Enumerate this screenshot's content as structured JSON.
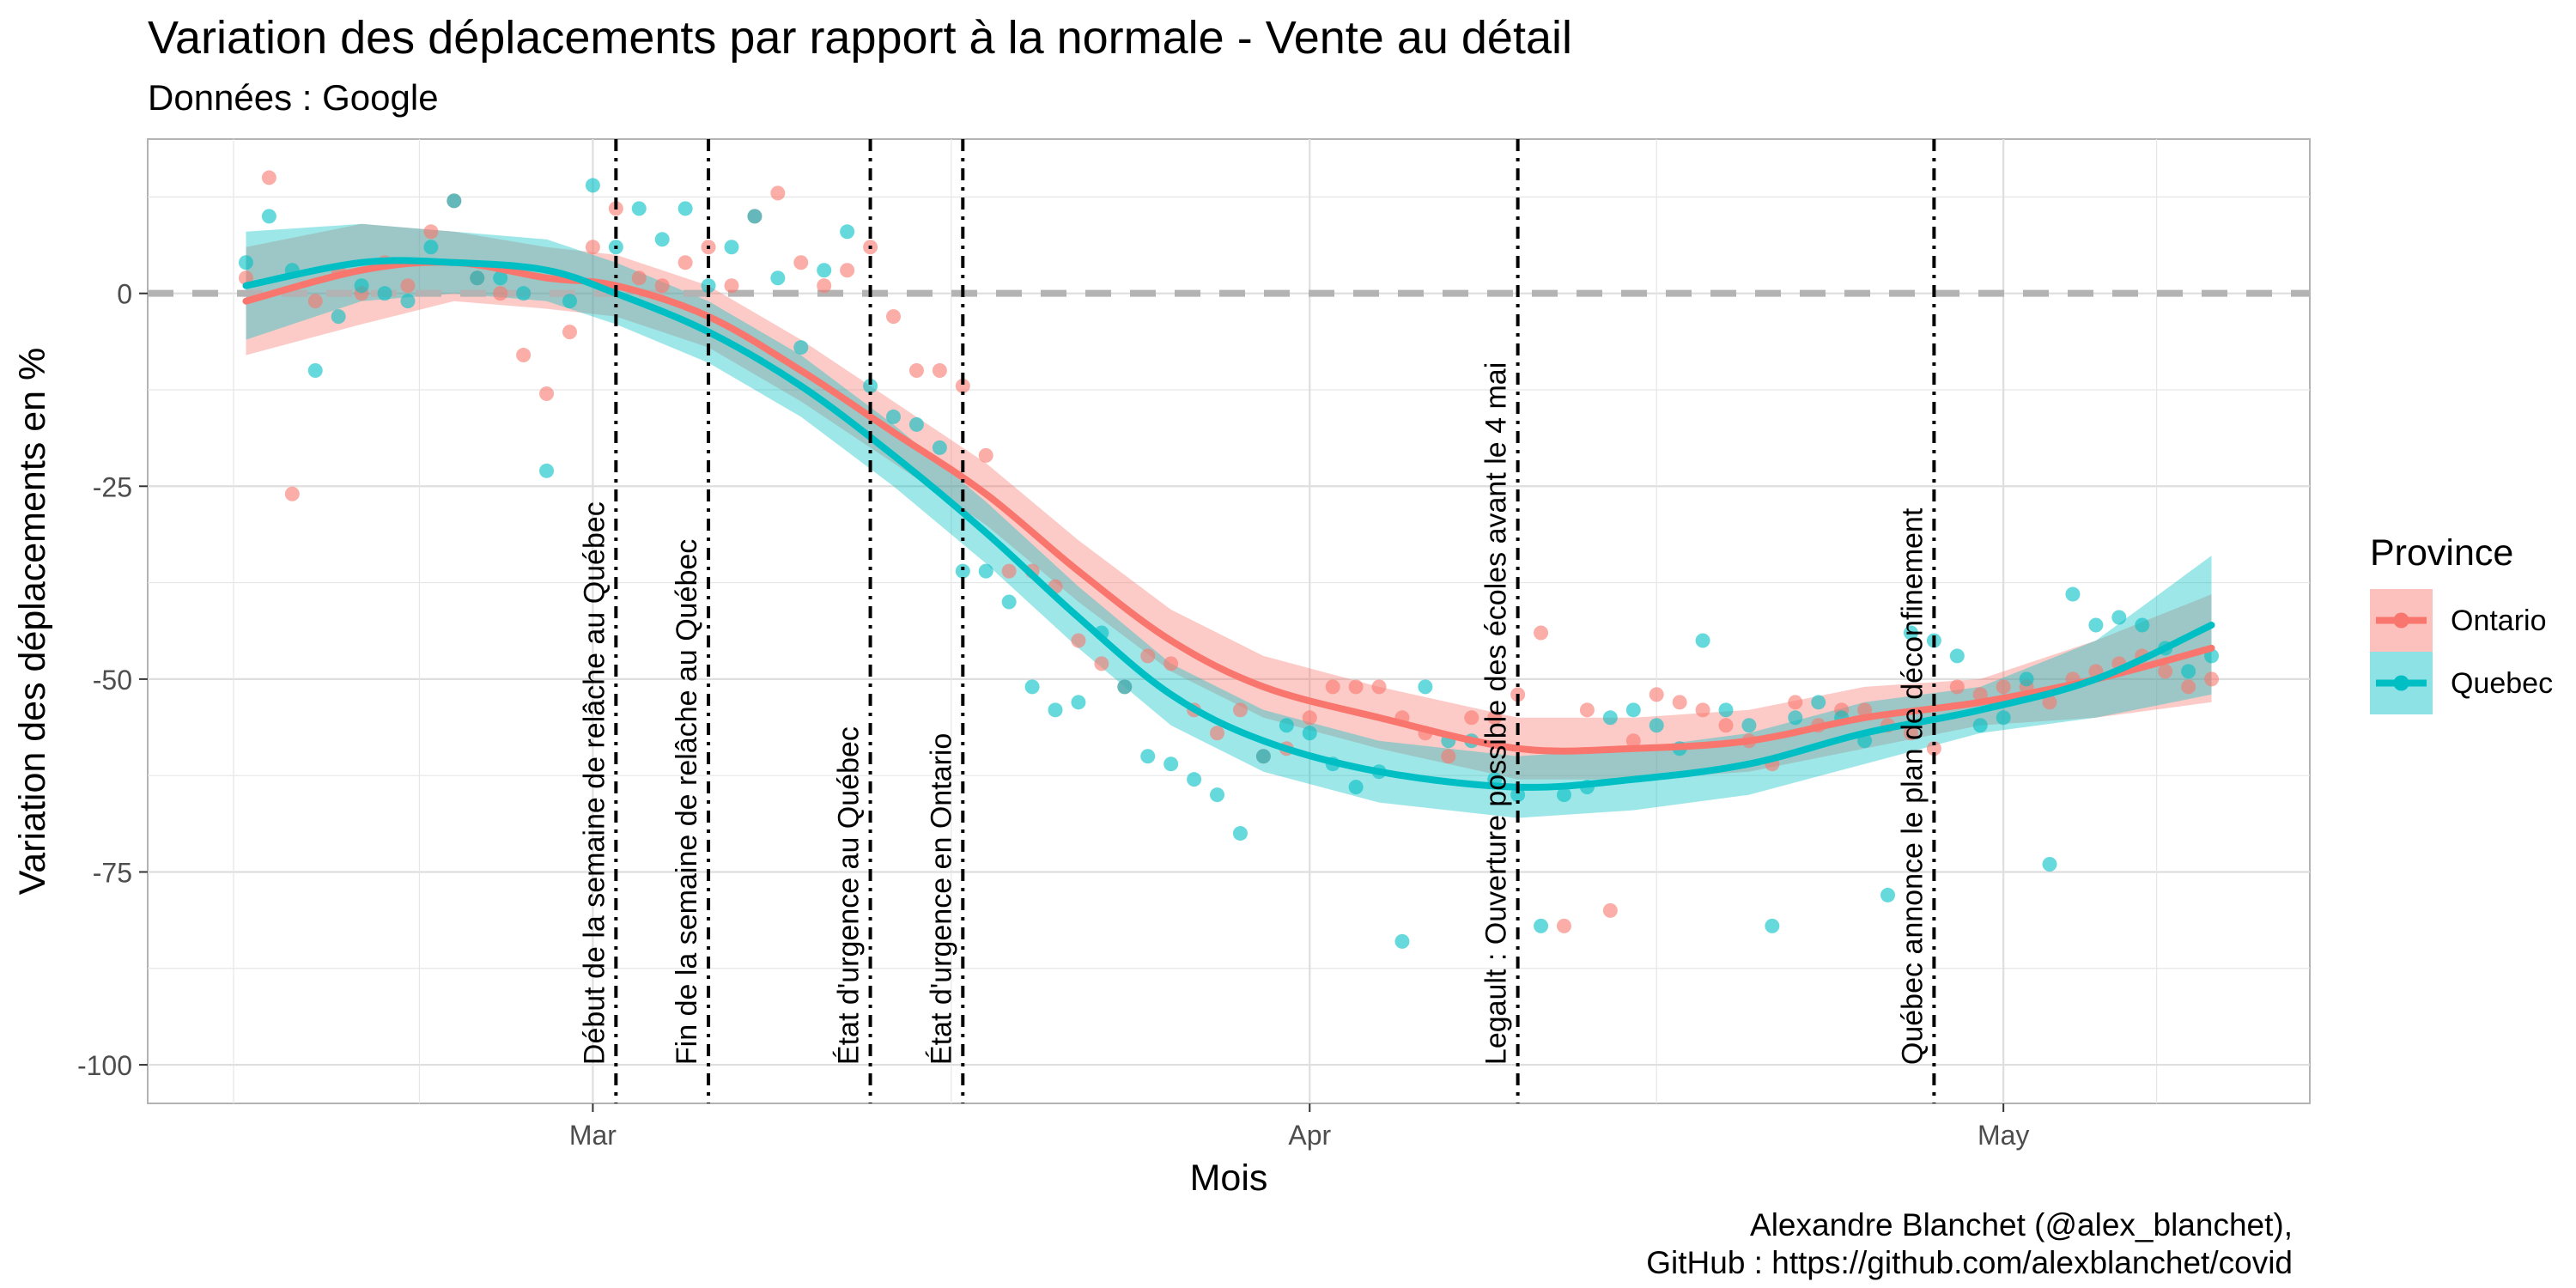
{
  "title": "Variation des déplacements par rapport à la normale - Vente au détail",
  "subtitle": "Données : Google",
  "caption": {
    "line1": "Alexandre Blanchet (@alex_blanchet),",
    "line2": "GitHub : https://github.com/alexblanchet/covid"
  },
  "colors": {
    "ontario": "#F8766D",
    "quebec": "#00BFC4",
    "grid": "#e6e6e6",
    "panel_border": "#b3b3b3",
    "zero_line": "#b3b3b3"
  },
  "chart_data": {
    "type": "scatter",
    "xlabel": "Mois",
    "ylabel": "Variation des déplacements en %",
    "x_domain": [
      "2020-02-15",
      "2020-05-10"
    ],
    "ylim": [
      -105,
      20
    ],
    "y_ticks": [
      0,
      -25,
      -50,
      -75,
      -100
    ],
    "x_ticks": [
      {
        "date": "2020-03-01",
        "label": "Mar"
      },
      {
        "date": "2020-04-01",
        "label": "Apr"
      },
      {
        "date": "2020-05-01",
        "label": "May"
      }
    ],
    "grid": true,
    "legend": {
      "title": "Province",
      "placement": "right"
    },
    "reference_line": {
      "y": 0,
      "style": "dashed"
    },
    "events": [
      {
        "date": "2020-03-02",
        "label": "Début de la semaine de relâche au Québec"
      },
      {
        "date": "2020-03-06",
        "label": "Fin de la semaine de relâche au Québec"
      },
      {
        "date": "2020-03-13",
        "label": "État d'urgence au Québec"
      },
      {
        "date": "2020-03-17",
        "label": "État d'urgence en Ontario"
      },
      {
        "date": "2020-04-10",
        "label": "Legault : Ouverture possible des écoles avant le 4 mai"
      },
      {
        "date": "2020-04-28",
        "label": "Québec annonce le plan de déconfinement"
      }
    ],
    "series": [
      {
        "name": "Ontario",
        "points": [
          [
            "2020-02-15",
            2
          ],
          [
            "2020-02-16",
            15
          ],
          [
            "2020-02-17",
            -26
          ],
          [
            "2020-02-18",
            -1
          ],
          [
            "2020-02-19",
            3
          ],
          [
            "2020-02-20",
            0
          ],
          [
            "2020-02-21",
            4
          ],
          [
            "2020-02-22",
            1
          ],
          [
            "2020-02-23",
            8
          ],
          [
            "2020-02-24",
            12
          ],
          [
            "2020-02-25",
            2
          ],
          [
            "2020-02-26",
            0
          ],
          [
            "2020-02-27",
            -8
          ],
          [
            "2020-02-28",
            -13
          ],
          [
            "2020-02-29",
            -5
          ],
          [
            "2020-03-01",
            6
          ],
          [
            "2020-03-02",
            11
          ],
          [
            "2020-03-03",
            2
          ],
          [
            "2020-03-04",
            1
          ],
          [
            "2020-03-05",
            4
          ],
          [
            "2020-03-06",
            6
          ],
          [
            "2020-03-07",
            1
          ],
          [
            "2020-03-08",
            10
          ],
          [
            "2020-03-09",
            13
          ],
          [
            "2020-03-10",
            4
          ],
          [
            "2020-03-11",
            1
          ],
          [
            "2020-03-12",
            3
          ],
          [
            "2020-03-13",
            6
          ],
          [
            "2020-03-14",
            -3
          ],
          [
            "2020-03-15",
            -10
          ],
          [
            "2020-03-16",
            -10
          ],
          [
            "2020-03-17",
            -12
          ],
          [
            "2020-03-18",
            -21
          ],
          [
            "2020-03-19",
            -36
          ],
          [
            "2020-03-20",
            -36
          ],
          [
            "2020-03-21",
            -38
          ],
          [
            "2020-03-22",
            -45
          ],
          [
            "2020-03-23",
            -48
          ],
          [
            "2020-03-24",
            -51
          ],
          [
            "2020-03-25",
            -47
          ],
          [
            "2020-03-26",
            -48
          ],
          [
            "2020-03-27",
            -54
          ],
          [
            "2020-03-28",
            -57
          ],
          [
            "2020-03-29",
            -54
          ],
          [
            "2020-03-30",
            -60
          ],
          [
            "2020-03-31",
            -59
          ],
          [
            "2020-04-01",
            -55
          ],
          [
            "2020-04-02",
            -51
          ],
          [
            "2020-04-03",
            -51
          ],
          [
            "2020-04-04",
            -51
          ],
          [
            "2020-04-05",
            -55
          ],
          [
            "2020-04-06",
            -57
          ],
          [
            "2020-04-07",
            -60
          ],
          [
            "2020-04-08",
            -55
          ],
          [
            "2020-04-09",
            -55
          ],
          [
            "2020-04-10",
            -52
          ],
          [
            "2020-04-11",
            -44
          ],
          [
            "2020-04-12",
            -82
          ],
          [
            "2020-04-13",
            -54
          ],
          [
            "2020-04-14",
            -80
          ],
          [
            "2020-04-15",
            -58
          ],
          [
            "2020-04-16",
            -52
          ],
          [
            "2020-04-17",
            -53
          ],
          [
            "2020-04-18",
            -54
          ],
          [
            "2020-04-19",
            -56
          ],
          [
            "2020-04-20",
            -58
          ],
          [
            "2020-04-21",
            -61
          ],
          [
            "2020-04-22",
            -53
          ],
          [
            "2020-04-23",
            -56
          ],
          [
            "2020-04-24",
            -54
          ],
          [
            "2020-04-25",
            -54
          ],
          [
            "2020-04-26",
            -56
          ],
          [
            "2020-04-27",
            -57
          ],
          [
            "2020-04-28",
            -59
          ],
          [
            "2020-04-29",
            -51
          ],
          [
            "2020-04-30",
            -52
          ],
          [
            "2020-05-01",
            -51
          ],
          [
            "2020-05-02",
            -51
          ],
          [
            "2020-05-03",
            -53
          ],
          [
            "2020-05-04",
            -50
          ],
          [
            "2020-05-05",
            -49
          ],
          [
            "2020-05-06",
            -48
          ],
          [
            "2020-05-07",
            -47
          ],
          [
            "2020-05-08",
            -49
          ],
          [
            "2020-05-09",
            -51
          ],
          [
            "2020-05-10",
            -50
          ]
        ],
        "smooth": [
          [
            "2020-02-15",
            -1,
            -8,
            6
          ],
          [
            "2020-02-20",
            3,
            -4,
            9
          ],
          [
            "2020-02-24",
            4,
            -1,
            8
          ],
          [
            "2020-02-28",
            2,
            -2,
            6
          ],
          [
            "2020-03-02",
            1,
            -3,
            5
          ],
          [
            "2020-03-06",
            -3,
            -7,
            1
          ],
          [
            "2020-03-10",
            -10,
            -14,
            -6
          ],
          [
            "2020-03-14",
            -18,
            -22,
            -14
          ],
          [
            "2020-03-18",
            -26,
            -30,
            -22
          ],
          [
            "2020-03-22",
            -36,
            -40,
            -32
          ],
          [
            "2020-03-26",
            -45,
            -49,
            -41
          ],
          [
            "2020-03-30",
            -51,
            -55,
            -47
          ],
          [
            "2020-04-04",
            -55,
            -59,
            -51
          ],
          [
            "2020-04-10",
            -59,
            -63,
            -55
          ],
          [
            "2020-04-15",
            -59,
            -63,
            -55
          ],
          [
            "2020-04-20",
            -58,
            -62,
            -54
          ],
          [
            "2020-04-25",
            -55,
            -59,
            -51
          ],
          [
            "2020-04-30",
            -53,
            -56,
            -50
          ],
          [
            "2020-05-05",
            -50,
            -55,
            -45
          ],
          [
            "2020-05-10",
            -46,
            -53,
            -39
          ]
        ]
      },
      {
        "name": "Quebec",
        "points": [
          [
            "2020-02-15",
            4
          ],
          [
            "2020-02-16",
            10
          ],
          [
            "2020-02-17",
            3
          ],
          [
            "2020-02-18",
            -10
          ],
          [
            "2020-02-19",
            -3
          ],
          [
            "2020-02-20",
            1
          ],
          [
            "2020-02-21",
            0
          ],
          [
            "2020-02-22",
            -1
          ],
          [
            "2020-02-23",
            6
          ],
          [
            "2020-02-24",
            12
          ],
          [
            "2020-02-25",
            2
          ],
          [
            "2020-02-26",
            2
          ],
          [
            "2020-02-27",
            0
          ],
          [
            "2020-02-28",
            -23
          ],
          [
            "2020-02-29",
            -1
          ],
          [
            "2020-03-01",
            14
          ],
          [
            "2020-03-02",
            6
          ],
          [
            "2020-03-03",
            11
          ],
          [
            "2020-03-04",
            7
          ],
          [
            "2020-03-05",
            11
          ],
          [
            "2020-03-06",
            1
          ],
          [
            "2020-03-07",
            6
          ],
          [
            "2020-03-08",
            10
          ],
          [
            "2020-03-09",
            2
          ],
          [
            "2020-03-10",
            -7
          ],
          [
            "2020-03-11",
            3
          ],
          [
            "2020-03-12",
            8
          ],
          [
            "2020-03-13",
            -12
          ],
          [
            "2020-03-14",
            -16
          ],
          [
            "2020-03-15",
            -17
          ],
          [
            "2020-03-16",
            -20
          ],
          [
            "2020-03-17",
            -36
          ],
          [
            "2020-03-18",
            -36
          ],
          [
            "2020-03-19",
            -40
          ],
          [
            "2020-03-20",
            -51
          ],
          [
            "2020-03-21",
            -54
          ],
          [
            "2020-03-22",
            -53
          ],
          [
            "2020-03-23",
            -44
          ],
          [
            "2020-03-24",
            -51
          ],
          [
            "2020-03-25",
            -60
          ],
          [
            "2020-03-26",
            -61
          ],
          [
            "2020-03-27",
            -63
          ],
          [
            "2020-03-28",
            -65
          ],
          [
            "2020-03-29",
            -70
          ],
          [
            "2020-03-30",
            -60
          ],
          [
            "2020-03-31",
            -56
          ],
          [
            "2020-04-01",
            -57
          ],
          [
            "2020-04-02",
            -61
          ],
          [
            "2020-04-03",
            -64
          ],
          [
            "2020-04-04",
            -62
          ],
          [
            "2020-04-05",
            -84
          ],
          [
            "2020-04-06",
            -51
          ],
          [
            "2020-04-07",
            -58
          ],
          [
            "2020-04-08",
            -58
          ],
          [
            "2020-04-09",
            -63
          ],
          [
            "2020-04-10",
            -65
          ],
          [
            "2020-04-11",
            -82
          ],
          [
            "2020-04-12",
            -65
          ],
          [
            "2020-04-13",
            -64
          ],
          [
            "2020-04-14",
            -55
          ],
          [
            "2020-04-15",
            -54
          ],
          [
            "2020-04-16",
            -56
          ],
          [
            "2020-04-17",
            -59
          ],
          [
            "2020-04-18",
            -45
          ],
          [
            "2020-04-19",
            -54
          ],
          [
            "2020-04-20",
            -56
          ],
          [
            "2020-04-21",
            -82
          ],
          [
            "2020-04-22",
            -55
          ],
          [
            "2020-04-23",
            -53
          ],
          [
            "2020-04-24",
            -55
          ],
          [
            "2020-04-25",
            -58
          ],
          [
            "2020-04-26",
            -78
          ],
          [
            "2020-04-27",
            -44
          ],
          [
            "2020-04-28",
            -45
          ],
          [
            "2020-04-29",
            -47
          ],
          [
            "2020-04-30",
            -56
          ],
          [
            "2020-05-01",
            -55
          ],
          [
            "2020-05-02",
            -50
          ],
          [
            "2020-05-03",
            -74
          ],
          [
            "2020-05-04",
            -39
          ],
          [
            "2020-05-05",
            -43
          ],
          [
            "2020-05-06",
            -42
          ],
          [
            "2020-05-07",
            -43
          ],
          [
            "2020-05-08",
            -46
          ],
          [
            "2020-05-09",
            -49
          ],
          [
            "2020-05-10",
            -47
          ]
        ],
        "smooth": [
          [
            "2020-02-15",
            1,
            -6,
            8
          ],
          [
            "2020-02-20",
            4,
            -1,
            9
          ],
          [
            "2020-02-24",
            4,
            0,
            8
          ],
          [
            "2020-02-28",
            3,
            -1,
            7
          ],
          [
            "2020-03-02",
            0,
            -4,
            4
          ],
          [
            "2020-03-06",
            -5,
            -9,
            -1
          ],
          [
            "2020-03-10",
            -12,
            -16,
            -8
          ],
          [
            "2020-03-14",
            -21,
            -25,
            -17
          ],
          [
            "2020-03-18",
            -31,
            -35,
            -27
          ],
          [
            "2020-03-22",
            -42,
            -46,
            -38
          ],
          [
            "2020-03-26",
            -52,
            -56,
            -48
          ],
          [
            "2020-03-30",
            -58,
            -62,
            -54
          ],
          [
            "2020-04-04",
            -62,
            -66,
            -58
          ],
          [
            "2020-04-10",
            -64,
            -68,
            -60
          ],
          [
            "2020-04-15",
            -63,
            -67,
            -59
          ],
          [
            "2020-04-20",
            -61,
            -65,
            -57
          ],
          [
            "2020-04-25",
            -57,
            -61,
            -53
          ],
          [
            "2020-04-30",
            -54,
            -57,
            -51
          ],
          [
            "2020-05-05",
            -50,
            -55,
            -45
          ],
          [
            "2020-05-10",
            -43,
            -52,
            -34
          ]
        ]
      }
    ]
  }
}
